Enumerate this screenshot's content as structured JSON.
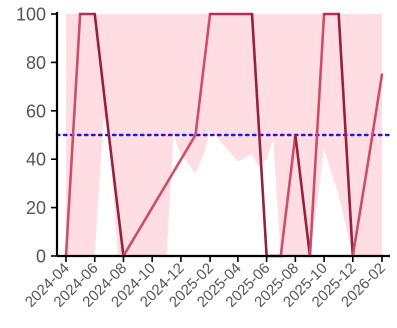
{
  "chart_data": {
    "type": "line",
    "title": "",
    "xlabel": "",
    "ylabel": "",
    "ylim": [
      0,
      100
    ],
    "yticks": [
      0,
      20,
      40,
      60,
      80,
      100
    ],
    "xticks": [
      "2024-04",
      "2024-06",
      "2024-08",
      "2024-10",
      "2024-12",
      "2025-02",
      "2025-04",
      "2025-06",
      "2025-08",
      "2025-10",
      "2025-12",
      "2026-02"
    ],
    "grid": false,
    "legend": "none",
    "band": {
      "color": "#ffdde3",
      "x": [
        "2024-04",
        "2024-05",
        "2024-06",
        "2024-06-20",
        "2024-07",
        "2024-07-20",
        "2024-08",
        "2024-09",
        "2024-10",
        "2024-11",
        "2024-11-15",
        "2024-12",
        "2025-01",
        "2025-01-20",
        "2025-02",
        "2025-03",
        "2025-04",
        "2025-05",
        "2025-05-15",
        "2025-06",
        "2025-06-15",
        "2025-07",
        "2025-08",
        "2025-09",
        "2025-10",
        "2025-11",
        "2025-12",
        "2026-01",
        "2026-02"
      ],
      "lower": [
        0,
        0,
        0,
        57,
        52,
        0,
        0,
        0,
        0,
        0,
        50,
        42,
        34,
        43,
        52,
        46,
        39,
        42,
        37,
        40,
        48,
        0,
        0,
        0,
        44,
        25,
        0,
        0,
        0
      ],
      "upper": [
        100,
        100,
        100,
        100,
        100,
        100,
        100,
        100,
        100,
        100,
        100,
        100,
        100,
        100,
        100,
        100,
        100,
        100,
        100,
        100,
        100,
        100,
        100,
        100,
        100,
        100,
        100,
        100,
        100
      ]
    },
    "reference_line": {
      "y": 50,
      "color": "#1a1adb",
      "style": "dotted"
    },
    "series": [
      {
        "color": "#b8304e",
        "x": [
          "2024-04",
          "2024-05",
          "2024-06",
          "2024-07",
          "2024-08",
          "2025-01",
          "2025-02",
          "2025-05",
          "2025-06",
          "2025-07",
          "2025-08",
          "2025-09",
          "2025-10",
          "2025-11",
          "2025-12",
          "2026-01",
          "2026-02"
        ],
        "values": [
          0,
          100,
          100,
          50,
          0,
          50,
          100,
          100,
          0,
          0,
          50,
          0,
          100,
          100,
          0,
          37,
          75
        ]
      }
    ]
  }
}
